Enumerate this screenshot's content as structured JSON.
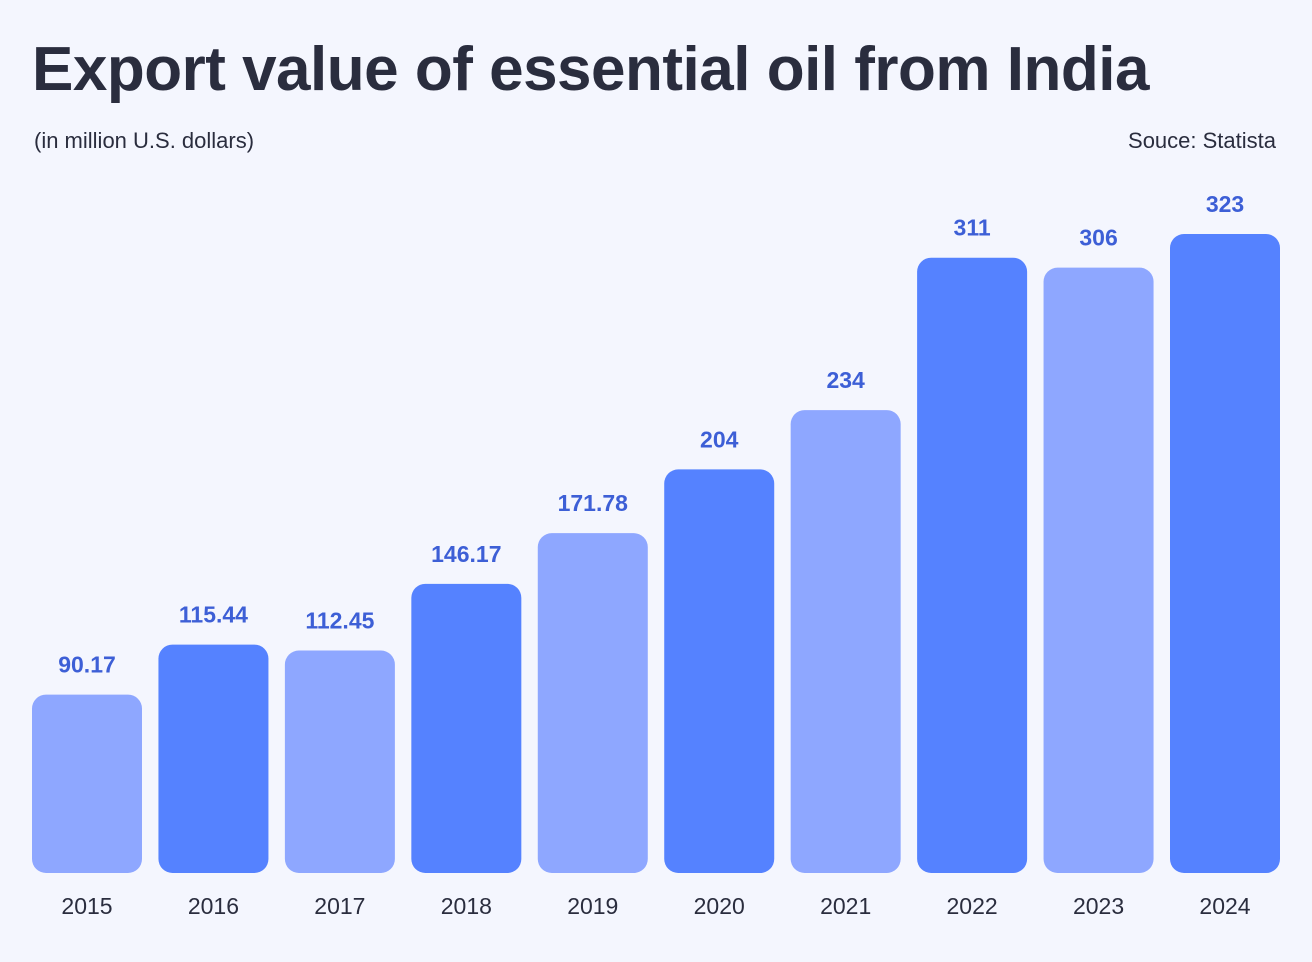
{
  "chart_data": {
    "type": "bar",
    "title": "Export value of essential oil from India",
    "subtitle": "(in million U.S. dollars)",
    "source": "Souce: Statista",
    "categories": [
      "2015",
      "2016",
      "2017",
      "2018",
      "2019",
      "2020",
      "2021",
      "2022",
      "2023",
      "2024"
    ],
    "values": [
      90.17,
      115.44,
      112.45,
      146.17,
      171.78,
      204,
      234,
      311,
      306,
      323
    ],
    "value_labels": [
      "90.17",
      "115.44",
      "112.45",
      "146.17",
      "171.78",
      "204",
      "234",
      "311",
      "306",
      "323"
    ],
    "colors": [
      "#8ea7ff",
      "#5582ff",
      "#8ea7ff",
      "#5582ff",
      "#8ea7ff",
      "#5582ff",
      "#8ea7ff",
      "#5582ff",
      "#8ea7ff",
      "#5582ff"
    ],
    "ylim": [
      0,
      323
    ],
    "grid": false,
    "legend": "none"
  }
}
